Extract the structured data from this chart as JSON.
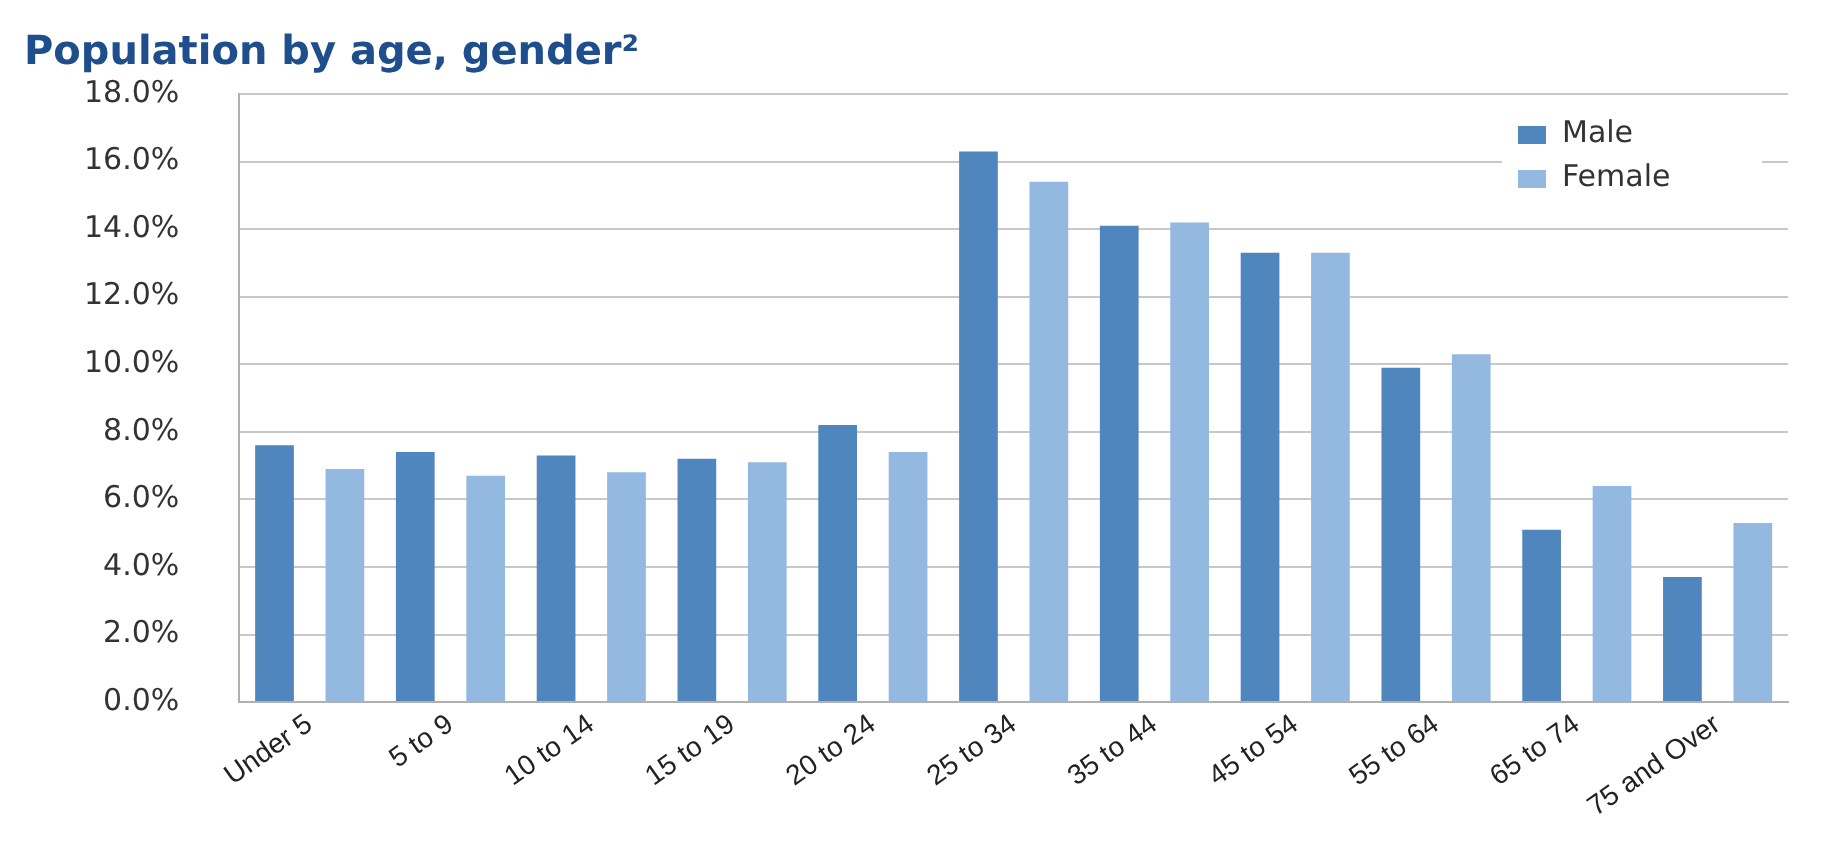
{
  "chart_data": {
    "type": "bar",
    "title": "Population by age, gender²",
    "categories": [
      "Under 5",
      "5 to 9",
      "10 to 14",
      "15 to 19",
      "20 to 24",
      "25 to 34",
      "35 to 44",
      "45 to 54",
      "55 to 64",
      "65 to 74",
      "75 and Over"
    ],
    "series": [
      {
        "name": "Male",
        "color": "#4f86be",
        "values": [
          7.6,
          7.4,
          7.3,
          7.2,
          8.2,
          16.3,
          14.1,
          13.3,
          9.9,
          5.1,
          3.7
        ]
      },
      {
        "name": "Female",
        "color": "#94b9e0",
        "values": [
          6.9,
          6.7,
          6.8,
          7.1,
          7.4,
          15.4,
          14.2,
          13.3,
          10.3,
          6.4,
          5.3
        ]
      }
    ],
    "ylim": [
      0,
      18
    ],
    "yticks": [
      {
        "value": 0,
        "label": "0.0%"
      },
      {
        "value": 2,
        "label": "2.0%"
      },
      {
        "value": 4,
        "label": "4.0%"
      },
      {
        "value": 6,
        "label": "6.0%"
      },
      {
        "value": 8,
        "label": "8.0%"
      },
      {
        "value": 10,
        "label": "10.0%"
      },
      {
        "value": 12,
        "label": "12.0%"
      },
      {
        "value": 14,
        "label": "14.0%"
      },
      {
        "value": 16,
        "label": "16.0%"
      },
      {
        "value": 18,
        "label": "18.0%"
      }
    ],
    "grid": "y",
    "legend": "top right"
  }
}
